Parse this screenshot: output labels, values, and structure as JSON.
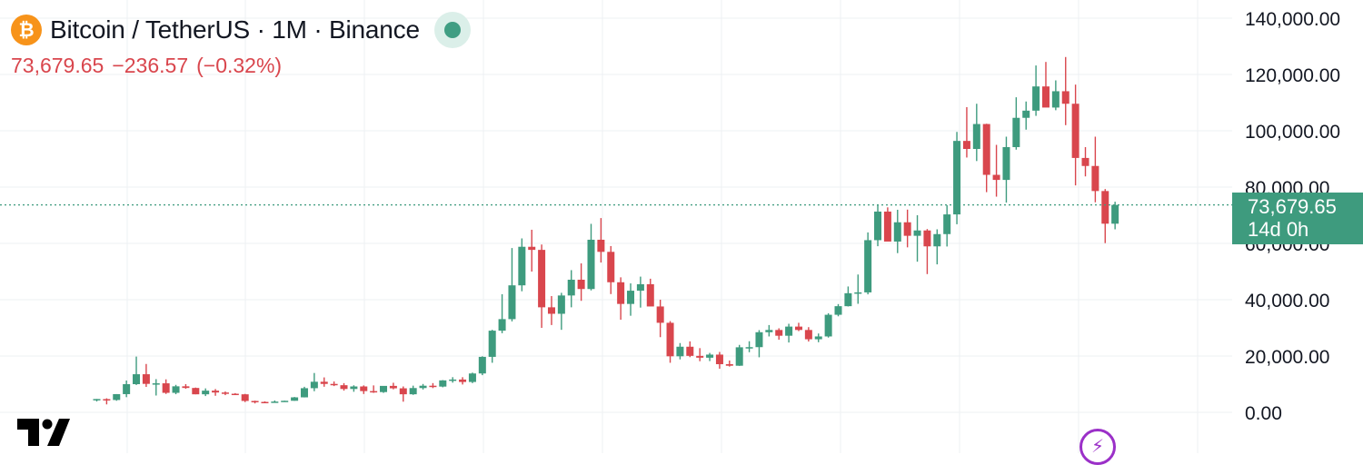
{
  "header": {
    "coin_icon_glyph": "₿",
    "title": "Bitcoin / TetherUS · 1M · Binance",
    "status_icon": "market-status-dot-icon"
  },
  "quote": {
    "price": "73,679.65",
    "change": "−236.57",
    "change_pct": "(−0.32%)"
  },
  "price_tag": {
    "price": "73,679.65",
    "countdown": "14d 0h"
  },
  "icons": {
    "logo": "tradingview-logo-icon",
    "bolt": "lightning-icon"
  },
  "colors": {
    "up": "#3e9b7e",
    "down": "#d9464d",
    "grid": "#eef0f3",
    "axis_text": "#131722"
  },
  "chart_data": {
    "type": "candlestick",
    "symbol": "Bitcoin / TetherUS",
    "timeframe": "1M",
    "exchange": "Binance",
    "y_axis": {
      "ticks": [
        0,
        20000,
        40000,
        60000,
        80000,
        100000,
        120000,
        140000
      ],
      "tick_labels": [
        "0.00",
        "20,000.00",
        "40,000.00",
        "60,000.00",
        "80,000.00",
        "100,000.00",
        "120,000.00",
        "140,000.00"
      ],
      "range": [
        0,
        140000
      ]
    },
    "grid": true,
    "last_price": 73679.65,
    "candles": [
      [
        4261,
        4745,
        3850,
        4724
      ],
      [
        4690,
        4980,
        2817,
        4378
      ],
      [
        4378,
        6470,
        4110,
        6464
      ],
      [
        6463,
        11300,
        5382,
        10000
      ],
      [
        10000,
        19798,
        9710,
        13531
      ],
      [
        13531,
        17176,
        9035,
        10106
      ],
      [
        10106,
        11787,
        5968,
        10306
      ],
      [
        10306,
        11710,
        6537,
        6923
      ],
      [
        6923,
        9750,
        6430,
        9240
      ],
      [
        9240,
        10020,
        8367,
        8655
      ],
      [
        8655,
        8790,
        6400,
        6400
      ],
      [
        6400,
        8500,
        5780,
        7700
      ],
      [
        7700,
        8270,
        5880,
        7040
      ],
      [
        7040,
        7400,
        6110,
        6600
      ],
      [
        6600,
        6820,
        6200,
        6400
      ],
      [
        6400,
        6540,
        3650,
        4040
      ],
      [
        4040,
        4150,
        3150,
        3700
      ],
      [
        3700,
        3900,
        3350,
        3440
      ],
      [
        3440,
        4210,
        3400,
        3820
      ],
      [
        3820,
        4140,
        3760,
        4100
      ],
      [
        4100,
        5450,
        4090,
        5320
      ],
      [
        5320,
        9070,
        5290,
        8570
      ],
      [
        8570,
        13970,
        7500,
        10860
      ],
      [
        10860,
        12400,
        9090,
        10090
      ],
      [
        10090,
        10960,
        9320,
        9630
      ],
      [
        9630,
        10370,
        7700,
        8290
      ],
      [
        8290,
        9600,
        7300,
        9190
      ],
      [
        9190,
        9560,
        6520,
        7540
      ],
      [
        7540,
        9560,
        6910,
        7190
      ],
      [
        7190,
        9190,
        6910,
        9390
      ],
      [
        9390,
        10500,
        8170,
        8530
      ],
      [
        8530,
        9190,
        3780,
        6410
      ],
      [
        6410,
        9470,
        6200,
        8620
      ],
      [
        8620,
        10070,
        8100,
        9450
      ],
      [
        9450,
        10380,
        8600,
        9140
      ],
      [
        9140,
        11450,
        8890,
        11350
      ],
      [
        11350,
        12490,
        10540,
        11650
      ],
      [
        11650,
        12480,
        9880,
        10780
      ],
      [
        10780,
        14100,
        10380,
        13800
      ],
      [
        13800,
        19900,
        13200,
        19700
      ],
      [
        19700,
        29300,
        17600,
        29000
      ],
      [
        29000,
        41950,
        28100,
        33100
      ],
      [
        33100,
        58350,
        32300,
        45100
      ],
      [
        45100,
        61780,
        43000,
        58800
      ],
      [
        58800,
        64850,
        50000,
        57700
      ],
      [
        57700,
        59600,
        30000,
        37300
      ],
      [
        37300,
        41300,
        31000,
        35000
      ],
      [
        35000,
        42450,
        29300,
        41500
      ],
      [
        41500,
        50500,
        37300,
        47100
      ],
      [
        47100,
        52900,
        39600,
        43800
      ],
      [
        43800,
        66950,
        43300,
        61300
      ],
      [
        61300,
        69000,
        53200,
        57000
      ],
      [
        57000,
        59050,
        42000,
        46200
      ],
      [
        46200,
        47950,
        32900,
        38500
      ],
      [
        38500,
        45800,
        34300,
        43200
      ],
      [
        43200,
        48200,
        37200,
        45500
      ],
      [
        45500,
        47450,
        37700,
        37600
      ],
      [
        37600,
        40000,
        26700,
        31800
      ],
      [
        31800,
        32400,
        17600,
        19900
      ],
      [
        19900,
        24600,
        18800,
        23300
      ],
      [
        23300,
        25200,
        19600,
        20050
      ],
      [
        20050,
        22800,
        18150,
        19400
      ],
      [
        19400,
        21100,
        18200,
        20500
      ],
      [
        20500,
        21450,
        15500,
        17100
      ],
      [
        17100,
        18400,
        16250,
        16550
      ],
      [
        16550,
        23950,
        16500,
        23100
      ],
      [
        23100,
        25250,
        21350,
        23150
      ],
      [
        23150,
        29200,
        19550,
        28450
      ],
      [
        28450,
        31000,
        26950,
        29250
      ],
      [
        29250,
        29850,
        25800,
        27200
      ],
      [
        27200,
        31450,
        24800,
        30450
      ],
      [
        30450,
        31800,
        28850,
        29250
      ],
      [
        29250,
        30250,
        25150,
        25950
      ],
      [
        25950,
        28000,
        24900,
        26950
      ],
      [
        26950,
        35200,
        26550,
        34650
      ],
      [
        34650,
        38450,
        34100,
        37700
      ],
      [
        37700,
        44700,
        37600,
        42300
      ],
      [
        42300,
        48950,
        38550,
        42600
      ],
      [
        42600,
        63900,
        41900,
        61150
      ],
      [
        61150,
        73800,
        59000,
        71300
      ],
      [
        71300,
        72800,
        60800,
        60650
      ],
      [
        60650,
        71950,
        56550,
        67500
      ],
      [
        67500,
        72000,
        58600,
        62700
      ],
      [
        62700,
        70000,
        53500,
        64600
      ],
      [
        64600,
        65100,
        49100,
        58950
      ],
      [
        58950,
        65000,
        52550,
        63300
      ],
      [
        63300,
        73600,
        58900,
        70300
      ],
      [
        70300,
        99600,
        66800,
        96400
      ],
      [
        96400,
        108400,
        90500,
        93550
      ],
      [
        93550,
        109600,
        89250,
        102400
      ],
      [
        102400,
        102500,
        78200,
        84350
      ],
      [
        84350,
        95000,
        76600,
        82550
      ],
      [
        82550,
        97900,
        74500,
        94200
      ],
      [
        94200,
        111900,
        93300,
        104600
      ],
      [
        104600,
        110400,
        100400,
        107150
      ],
      [
        107150,
        123200,
        105300,
        115750
      ],
      [
        115750,
        124450,
        108800,
        108250
      ],
      [
        108250,
        117900,
        107300,
        114050
      ],
      [
        114050,
        126200,
        102000,
        109600
      ],
      [
        109600,
        116400,
        80600,
        90350
      ],
      [
        90350,
        94200,
        83800,
        87500
      ],
      [
        87500,
        97900,
        74600,
        78600
      ],
      [
        78600,
        79300,
        60100,
        67000
      ],
      [
        67000,
        74800,
        65000,
        73679.65
      ]
    ]
  }
}
